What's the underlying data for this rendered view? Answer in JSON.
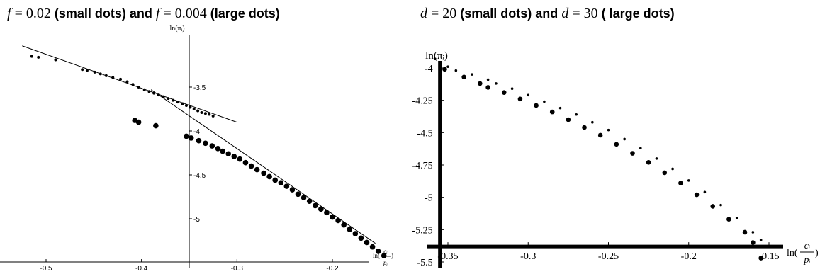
{
  "panels": {
    "p1": {
      "title": {
        "var1": "f",
        "eq1": " = ",
        "val1": "0.02",
        "lbl1": " (small dots) and ",
        "var2": "f",
        "eq2": " = ",
        "val2": "0.004",
        "lbl2": " (large dots)"
      },
      "y_axis_label": "ln(πᵢ)",
      "x_axis_label": {
        "prefix": "ln(",
        "num": "cᵢ",
        "den": "pᵢ",
        "suffix": ")"
      }
    },
    "p2": {
      "title": {
        "var1": "d",
        "eq1": " = ",
        "val1": "20",
        "lbl1": " (small dots) and ",
        "var2": "d",
        "eq2": " = ",
        "val2": "30",
        "lbl2": " ( large dots)"
      },
      "y_axis_label": "ln(πᵢ)",
      "x_axis_label": {
        "prefix": "ln(",
        "num": "cᵢ",
        "den": "pᵢ",
        "suffix": ")"
      }
    }
  },
  "chart_data": [
    {
      "type": "scatter",
      "title": "f = 0.02 (small dots) and f = 0.004 (large dots)",
      "xlabel": "ln(ci/pi)",
      "ylabel": "ln(πi)",
      "xlim": [
        -0.53,
        -0.145
      ],
      "ylim": [
        -5.45,
        -3.0
      ],
      "x_axis_crossing": -0.35,
      "x_ticks": [
        -0.5,
        -0.4,
        -0.3,
        -0.2
      ],
      "x_tick_labels": [
        "-0.5",
        "-0.4",
        "-0.3",
        "-0.2"
      ],
      "y_ticks": [
        -3.5,
        -4.0,
        -4.5,
        -5.0
      ],
      "y_tick_labels": [
        "-3.5",
        "-4",
        "-4.5",
        "-5"
      ],
      "series": [
        {
          "name": "f = 0.02",
          "marker": "small",
          "x": [
            -0.515,
            -0.508,
            -0.49,
            -0.462,
            -0.457,
            -0.449,
            -0.443,
            -0.437,
            -0.43,
            -0.422,
            -0.415,
            -0.409,
            -0.403,
            -0.397,
            -0.392,
            -0.387,
            -0.382,
            -0.377,
            -0.372,
            -0.367,
            -0.362,
            -0.357,
            -0.353,
            -0.349,
            -0.345,
            -0.341,
            -0.337,
            -0.333,
            -0.329,
            -0.325
          ],
          "y": [
            -3.15,
            -3.16,
            -3.19,
            -3.3,
            -3.31,
            -3.33,
            -3.35,
            -3.37,
            -3.39,
            -3.41,
            -3.44,
            -3.47,
            -3.5,
            -3.53,
            -3.55,
            -3.57,
            -3.59,
            -3.61,
            -3.63,
            -3.65,
            -3.67,
            -3.69,
            -3.71,
            -3.73,
            -3.75,
            -3.77,
            -3.79,
            -3.8,
            -3.81,
            -3.83
          ]
        },
        {
          "name": "f = 0.004",
          "marker": "large",
          "x": [
            -0.407,
            -0.403,
            -0.385,
            -0.353,
            -0.348,
            -0.34,
            -0.333,
            -0.326,
            -0.32,
            -0.315,
            -0.309,
            -0.303,
            -0.297,
            -0.291,
            -0.285,
            -0.279,
            -0.272,
            -0.266,
            -0.26,
            -0.254,
            -0.248,
            -0.242,
            -0.236,
            -0.23,
            -0.224,
            -0.218,
            -0.212,
            -0.206,
            -0.2,
            -0.194,
            -0.188,
            -0.182,
            -0.176,
            -0.17,
            -0.164,
            -0.158,
            -0.152,
            -0.146
          ],
          "y": [
            -3.88,
            -3.9,
            -3.94,
            -4.06,
            -4.08,
            -4.11,
            -4.14,
            -4.17,
            -4.2,
            -4.23,
            -4.26,
            -4.29,
            -4.32,
            -4.36,
            -4.4,
            -4.44,
            -4.48,
            -4.52,
            -4.56,
            -4.59,
            -4.63,
            -4.67,
            -4.72,
            -4.76,
            -4.8,
            -4.85,
            -4.89,
            -4.93,
            -4.98,
            -5.02,
            -5.07,
            -5.12,
            -5.17,
            -5.22,
            -5.27,
            -5.32,
            -5.37,
            -5.42
          ]
        }
      ],
      "fit_lines": [
        {
          "from": [
            -0.525,
            -3.03
          ],
          "to": [
            -0.3,
            -3.9
          ]
        },
        {
          "from": [
            -0.39,
            -3.53
          ],
          "to": [
            -0.155,
            -5.28
          ]
        }
      ]
    },
    {
      "type": "scatter",
      "title": "d = 20 (small dots) and d = 30 ( large dots)",
      "xlabel": "ln(ci/pi)",
      "ylabel": "ln(πi)",
      "xlim": [
        -0.36,
        -0.145
      ],
      "ylim": [
        -5.5,
        -3.9
      ],
      "x_axis_crossing": -5.38,
      "y_axis_crossing": -0.355,
      "x_ticks": [
        -0.35,
        -0.3,
        -0.25,
        -0.2,
        -0.15
      ],
      "x_tick_labels": [
        "-0.35",
        "-0.3",
        "-0.25",
        "-0.2",
        "-0.15"
      ],
      "y_ticks": [
        -4,
        -4.25,
        -4.5,
        -4.75,
        -5,
        -5.25,
        -5.5
      ],
      "y_tick_labels": [
        "-4",
        "-4.25",
        "-4.5",
        "-4.75",
        "-5",
        "-5.25",
        "-5.5"
      ],
      "series": [
        {
          "name": "d = 20",
          "marker": "small",
          "x": [
            -0.358,
            -0.35,
            -0.345,
            -0.335,
            -0.325,
            -0.32,
            -0.31,
            -0.3,
            -0.29,
            -0.28,
            -0.27,
            -0.26,
            -0.25,
            -0.24,
            -0.23,
            -0.22,
            -0.21,
            -0.2,
            -0.19,
            -0.18,
            -0.17,
            -0.16,
            -0.155
          ],
          "y": [
            -3.93,
            -3.99,
            -4.02,
            -4.05,
            -4.09,
            -4.12,
            -4.16,
            -4.21,
            -4.26,
            -4.31,
            -4.36,
            -4.42,
            -4.48,
            -4.55,
            -4.62,
            -4.7,
            -4.78,
            -4.87,
            -4.96,
            -5.06,
            -5.16,
            -5.27,
            -5.33
          ]
        },
        {
          "name": "d = 30",
          "marker": "large",
          "x": [
            -0.352,
            -0.34,
            -0.33,
            -0.325,
            -0.315,
            -0.305,
            -0.295,
            -0.285,
            -0.275,
            -0.265,
            -0.255,
            -0.245,
            -0.235,
            -0.225,
            -0.215,
            -0.205,
            -0.195,
            -0.185,
            -0.175,
            -0.165,
            -0.16,
            -0.155
          ],
          "y": [
            -4.01,
            -4.07,
            -4.12,
            -4.15,
            -4.19,
            -4.24,
            -4.29,
            -4.34,
            -4.4,
            -4.46,
            -4.52,
            -4.59,
            -4.66,
            -4.73,
            -4.81,
            -4.89,
            -4.98,
            -5.07,
            -5.17,
            -5.27,
            -5.35,
            -5.47
          ]
        }
      ]
    }
  ]
}
